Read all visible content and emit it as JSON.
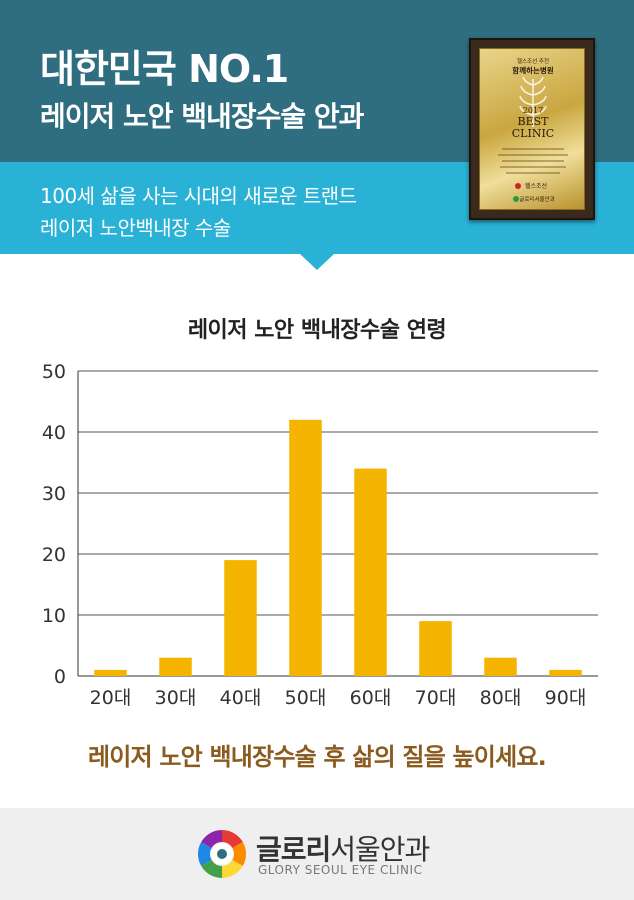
{
  "header": {
    "headline": "대한민국 NO.1",
    "subheadline": "레이저 노안 백내장수술 안과",
    "tagline_line1": "100세 삶을 사는 시대의 새로운 트랜드",
    "tagline_line2": "레이저 노안백내장 수술"
  },
  "award": {
    "top_text": "헬스조선 추천",
    "title": "함께하는병원",
    "year": "2017",
    "best": "BEST",
    "clinic": "CLINIC",
    "brand": "헬스조선",
    "hospital": "글로리서울안과"
  },
  "chart_data": {
    "type": "bar",
    "title": "레이저 노안 백내장수술 연령",
    "categories": [
      "20대",
      "30대",
      "40대",
      "50대",
      "60대",
      "70대",
      "80대",
      "90대"
    ],
    "values": [
      1,
      3,
      19,
      42,
      34,
      9,
      3,
      1
    ],
    "ylim": [
      0,
      50
    ],
    "yticks": [
      0,
      10,
      20,
      30,
      40,
      50
    ],
    "grid": true,
    "bar_color": "#f4b400"
  },
  "slogan": "레이저 노안 백내장수술 후 삶의 질을 높이세요.",
  "footer": {
    "name_bold": "글로리",
    "name_rest": "서울안과",
    "name_en": "GLORY SEOUL EYE CLINIC"
  },
  "colors": {
    "header_dark": "#2e6e80",
    "header_light": "#29b2d6",
    "slogan": "#8a5a1e"
  }
}
